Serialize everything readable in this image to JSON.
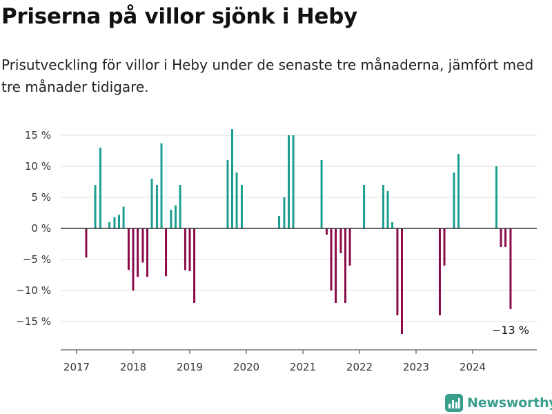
{
  "title": "Priserna på villor sjönk i Heby",
  "subtitle": "Prisutveckling för villor i Heby under de senaste tre månaderna, jämfört med tre månader tidigare.",
  "brand": {
    "name": "Newsworthy",
    "icon": "newsworthy-logo-icon",
    "color": "#3a9e8c"
  },
  "colors": {
    "positive": "#1a9e8f",
    "negative": "#8b0a4a"
  },
  "chart_data": {
    "type": "bar",
    "title": "Priserna på villor sjönk i Heby",
    "xlabel": "",
    "ylabel": "",
    "ylim": [
      -19,
      17
    ],
    "y_ticks": [
      15,
      10,
      5,
      0,
      -5,
      -10,
      -15
    ],
    "y_tick_labels": [
      "15 %",
      "10 %",
      "5 %",
      "0 %",
      "−5 %",
      "−10 %",
      "−15 %"
    ],
    "x_ticks": [
      2017,
      2018,
      2019,
      2020,
      2021,
      2022,
      2023,
      2024
    ],
    "x_tick_labels": [
      "2017",
      "2018",
      "2019",
      "2020",
      "2021",
      "2022",
      "2023",
      "2024"
    ],
    "grid": true,
    "series": [
      {
        "name": "Prisutveckling",
        "unit": "%",
        "points": [
          {
            "x": 2017.17,
            "value": -4.7
          },
          {
            "x": 2017.33,
            "value": 7
          },
          {
            "x": 2017.42,
            "value": 13
          },
          {
            "x": 2017.58,
            "value": 1
          },
          {
            "x": 2017.67,
            "value": 1.8
          },
          {
            "x": 2017.75,
            "value": 2.2
          },
          {
            "x": 2017.83,
            "value": 3.5
          },
          {
            "x": 2017.92,
            "value": -6.7
          },
          {
            "x": 2018.0,
            "value": -10
          },
          {
            "x": 2018.08,
            "value": -7.8
          },
          {
            "x": 2018.17,
            "value": -5.5
          },
          {
            "x": 2018.25,
            "value": -7.8
          },
          {
            "x": 2018.33,
            "value": 8
          },
          {
            "x": 2018.42,
            "value": 7
          },
          {
            "x": 2018.5,
            "value": 13.7
          },
          {
            "x": 2018.58,
            "value": -7.7
          },
          {
            "x": 2018.67,
            "value": 3
          },
          {
            "x": 2018.75,
            "value": 3.7
          },
          {
            "x": 2018.83,
            "value": 7
          },
          {
            "x": 2018.92,
            "value": -6.7
          },
          {
            "x": 2019.0,
            "value": -6.9
          },
          {
            "x": 2019.08,
            "value": -12
          },
          {
            "x": 2019.67,
            "value": 11
          },
          {
            "x": 2019.75,
            "value": 16
          },
          {
            "x": 2019.83,
            "value": 9
          },
          {
            "x": 2019.92,
            "value": 7
          },
          {
            "x": 2020.58,
            "value": 2
          },
          {
            "x": 2020.67,
            "value": 5
          },
          {
            "x": 2020.75,
            "value": 15
          },
          {
            "x": 2020.83,
            "value": 15
          },
          {
            "x": 2021.33,
            "value": 11
          },
          {
            "x": 2021.42,
            "value": -1
          },
          {
            "x": 2021.5,
            "value": -10
          },
          {
            "x": 2021.58,
            "value": -12
          },
          {
            "x": 2021.67,
            "value": -4
          },
          {
            "x": 2021.75,
            "value": -12
          },
          {
            "x": 2021.83,
            "value": -6
          },
          {
            "x": 2022.08,
            "value": 7
          },
          {
            "x": 2022.42,
            "value": 7
          },
          {
            "x": 2022.5,
            "value": 6
          },
          {
            "x": 2022.58,
            "value": 1
          },
          {
            "x": 2022.67,
            "value": -14
          },
          {
            "x": 2022.75,
            "value": -17
          },
          {
            "x": 2023.42,
            "value": -14
          },
          {
            "x": 2023.5,
            "value": -6
          },
          {
            "x": 2023.67,
            "value": 9
          },
          {
            "x": 2023.75,
            "value": 12
          },
          {
            "x": 2024.42,
            "value": 10
          },
          {
            "x": 2024.5,
            "value": -3
          },
          {
            "x": 2024.58,
            "value": -3
          },
          {
            "x": 2024.67,
            "value": -13
          }
        ]
      }
    ],
    "annotations": [
      {
        "text": "−13 %",
        "x": 2024.67,
        "value": -13
      }
    ]
  }
}
